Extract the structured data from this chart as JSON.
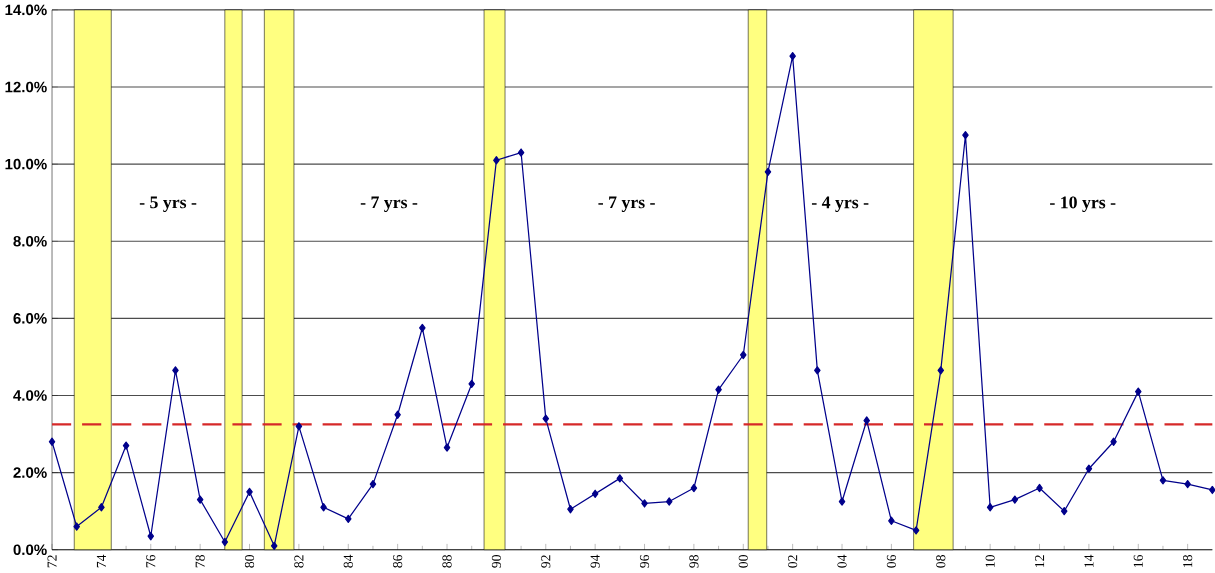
{
  "chart_data": {
    "type": "line",
    "x": [
      1972,
      1973,
      1974,
      1975,
      1976,
      1977,
      1978,
      1979,
      1980,
      1981,
      1982,
      1983,
      1984,
      1985,
      1986,
      1987,
      1988,
      1989,
      1990,
      1991,
      1992,
      1993,
      1994,
      1995,
      1996,
      1997,
      1998,
      1999,
      2000,
      2001,
      2002,
      2003,
      2004,
      2005,
      2006,
      2007,
      2008,
      2009,
      2010,
      2011,
      2012,
      2013,
      2014,
      2015,
      2016,
      2017,
      2018,
      2019
    ],
    "series": [
      {
        "color": "#00008b",
        "values": [
          2.8,
          0.6,
          1.1,
          2.7,
          0.35,
          4.65,
          1.3,
          0.2,
          1.5,
          0.1,
          3.2,
          1.1,
          0.8,
          1.7,
          3.5,
          5.75,
          2.65,
          4.3,
          10.1,
          10.3,
          3.4,
          1.05,
          1.45,
          1.85,
          1.2,
          1.25,
          1.6,
          4.15,
          5.05,
          9.8,
          12.8,
          4.65,
          1.25,
          3.35,
          0.75,
          0.5,
          4.65,
          10.75,
          1.1,
          1.3,
          1.6,
          1.0,
          2.1,
          2.8,
          4.1,
          1.8,
          1.7,
          1.55
        ]
      }
    ],
    "xlim": [
      1972,
      2019
    ],
    "xticks": [
      {
        "value": 1972,
        "label": "72"
      },
      {
        "value": 1974,
        "label": "74"
      },
      {
        "value": 1976,
        "label": "76"
      },
      {
        "value": 1978,
        "label": "78"
      },
      {
        "value": 1980,
        "label": "80"
      },
      {
        "value": 1982,
        "label": "82"
      },
      {
        "value": 1984,
        "label": "84"
      },
      {
        "value": 1986,
        "label": "86"
      },
      {
        "value": 1988,
        "label": "88"
      },
      {
        "value": 1990,
        "label": "90"
      },
      {
        "value": 1992,
        "label": "92"
      },
      {
        "value": 1994,
        "label": "94"
      },
      {
        "value": 1996,
        "label": "96"
      },
      {
        "value": 1998,
        "label": "98"
      },
      {
        "value": 2000,
        "label": "00"
      },
      {
        "value": 2002,
        "label": "02"
      },
      {
        "value": 2004,
        "label": "04"
      },
      {
        "value": 2006,
        "label": "06"
      },
      {
        "value": 2008,
        "label": "08"
      },
      {
        "value": 2010,
        "label": "10"
      },
      {
        "value": 2012,
        "label": "12"
      },
      {
        "value": 2014,
        "label": "14"
      },
      {
        "value": 2016,
        "label": "16"
      },
      {
        "value": 2018,
        "label": "18"
      }
    ],
    "ylim": [
      0,
      14
    ],
    "yticks": [
      {
        "value": 0,
        "label": "0.0%"
      },
      {
        "value": 2,
        "label": "2.0%"
      },
      {
        "value": 4,
        "label": "4.0%"
      },
      {
        "value": 6,
        "label": "6.0%"
      },
      {
        "value": 8,
        "label": "8.0%"
      },
      {
        "value": 10,
        "label": "10.0%"
      },
      {
        "value": 12,
        "label": "12.0%"
      },
      {
        "value": 14,
        "label": "14.0%"
      }
    ],
    "grid": "y",
    "marker": "diamond",
    "line_style": "solid",
    "ref_lines": [
      {
        "axis": "y",
        "value": 3.25,
        "color": "#d62828",
        "line_style": "dashed"
      }
    ],
    "bands": [
      {
        "axis": "x",
        "from": 1972.9,
        "to": 1974.4,
        "color": "#ffff80"
      },
      {
        "axis": "x",
        "from": 1979.0,
        "to": 1979.7,
        "color": "#ffff80"
      },
      {
        "axis": "x",
        "from": 1980.6,
        "to": 1981.8,
        "color": "#ffff80"
      },
      {
        "axis": "x",
        "from": 1989.5,
        "to": 1990.35,
        "color": "#ffff80"
      },
      {
        "axis": "x",
        "from": 2000.2,
        "to": 2000.95,
        "color": "#ffff80"
      },
      {
        "axis": "x",
        "from": 2006.9,
        "to": 2008.5,
        "color": "#ffff80"
      }
    ],
    "annotations": [
      "- 5 yrs -",
      "- 7 yrs -",
      "- 7 yrs -",
      "- 4 yrs -",
      "- 10 yrs -"
    ]
  }
}
